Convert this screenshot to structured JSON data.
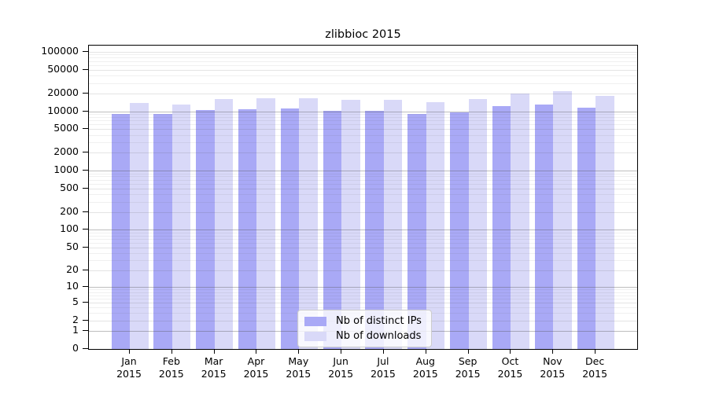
{
  "chart_data": {
    "type": "bar",
    "title": "zlibbioc 2015",
    "categories": [
      "Jan",
      "Feb",
      "Mar",
      "Apr",
      "May",
      "Jun",
      "Jul",
      "Aug",
      "Sep",
      "Oct",
      "Nov",
      "Dec"
    ],
    "x_tick_year": "2015",
    "series": [
      {
        "name": "Nb of distinct IPs",
        "color": "#a9a9f6",
        "values": [
          9000,
          9000,
          10400,
          10900,
          11200,
          10300,
          10100,
          8900,
          9500,
          12100,
          12900,
          11500
        ]
      },
      {
        "name": "Nb of downloads",
        "color": "#d9d9f8",
        "values": [
          13700,
          13000,
          15900,
          16400,
          16400,
          15500,
          15500,
          14100,
          16100,
          20200,
          21600,
          18200
        ]
      }
    ],
    "yscale": "log1p",
    "y_ticks": [
      0,
      1,
      2,
      5,
      10,
      20,
      50,
      100,
      200,
      500,
      1000,
      2000,
      5000,
      10000,
      20000,
      50000,
      100000
    ],
    "ylim": [
      0,
      130000
    ],
    "xlabel": "",
    "ylabel": "",
    "grid": "horizontal",
    "grid_colors": {
      "major": "rgba(85,85,85,0.38)",
      "labeled": "rgba(85,85,85,0.16)",
      "minor": "rgba(85,85,85,0.09)"
    },
    "legend_position": "lower center",
    "axis_color": "#000000",
    "background_color": "#ffffff"
  }
}
